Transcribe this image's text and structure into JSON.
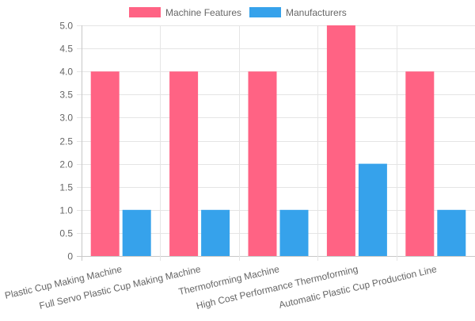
{
  "chart_data": {
    "type": "bar",
    "categories": [
      "Plastic Cup Making Machine",
      "Full Servo Plastic Cup Making Machine",
      "Thermoforming Machine",
      "High Cost Performance Thermoforming",
      "Automatic Plastic Cup Production Line"
    ],
    "series": [
      {
        "name": "Machine Features",
        "values": [
          4,
          4,
          4,
          5,
          4
        ],
        "color": "#ff6384"
      },
      {
        "name": "Manufacturers",
        "values": [
          1,
          1,
          1,
          2,
          1
        ],
        "color": "#36a2eb"
      }
    ],
    "y_ticks": [
      "0",
      "0.5",
      "1.0",
      "1.5",
      "2.0",
      "2.5",
      "3.0",
      "3.5",
      "4.0",
      "4.5",
      "5.0"
    ],
    "ylim": [
      0,
      5
    ],
    "grid": true,
    "legend_position": "top",
    "title": "",
    "xlabel": "",
    "ylabel": ""
  }
}
